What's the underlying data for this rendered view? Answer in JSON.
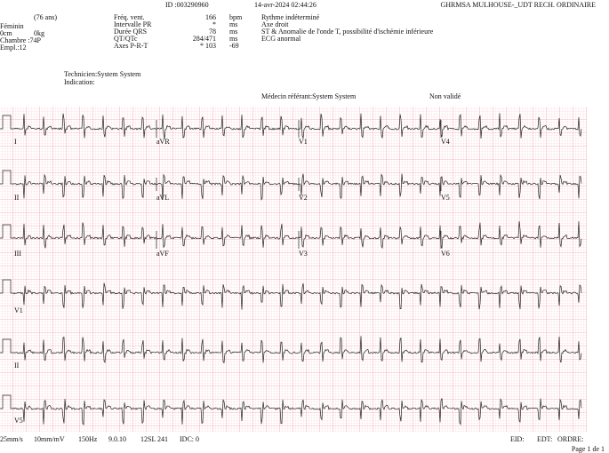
{
  "header": {
    "id": "ID :003290960",
    "datetime": "14-avr-2024  02:44:26",
    "site": "GHRMSA MULHOUSE-_UDT   RECH. ORDINAIRE"
  },
  "patient": {
    "age": "(76 ans)",
    "sex": "Féminin",
    "height": "0cm",
    "weight": "0kg",
    "room": "Chambre :74P",
    "location": "Empl.:12"
  },
  "measurements": [
    {
      "label": "Fréq. vent.",
      "value": "166",
      "unit": "bpm"
    },
    {
      "label": "Intervalle PR",
      "value": "*",
      "unit": "ms"
    },
    {
      "label": "Durée QRS",
      "value": "78",
      "unit": "ms"
    },
    {
      "label": "QT/QTc",
      "value": "284/471",
      "unit": "ms"
    },
    {
      "label": "Axes P-R-T",
      "value": "*  103",
      "unit": "-69"
    }
  ],
  "interpretation": [
    "Rythme indéterminé",
    "Axe droit",
    "ST & Anomalie de l'onde T, possibilité d'ischémie inférieure",
    "ECG anormal"
  ],
  "staff": {
    "technician": "Technicien:System System",
    "indication": "Indication:",
    "referrer": "Médecin référant:System System",
    "status": "Non validé"
  },
  "leads": [
    "I",
    "aVR",
    "V1",
    "V4",
    "II",
    "aVL",
    "V2",
    "V5",
    "III",
    "aVF",
    "V3",
    "V6",
    "V1",
    "II",
    "V5"
  ],
  "footer": {
    "speed": "25mm/s",
    "gain": "10mm/mV",
    "filter": "150Hz",
    "version": "9.0.10",
    "program": "12SL 241",
    "idc": "IDC: 0",
    "eid": "EID:",
    "edt": "EDT:",
    "order": "ORDRE:",
    "page": "Page 1 de 1"
  }
}
